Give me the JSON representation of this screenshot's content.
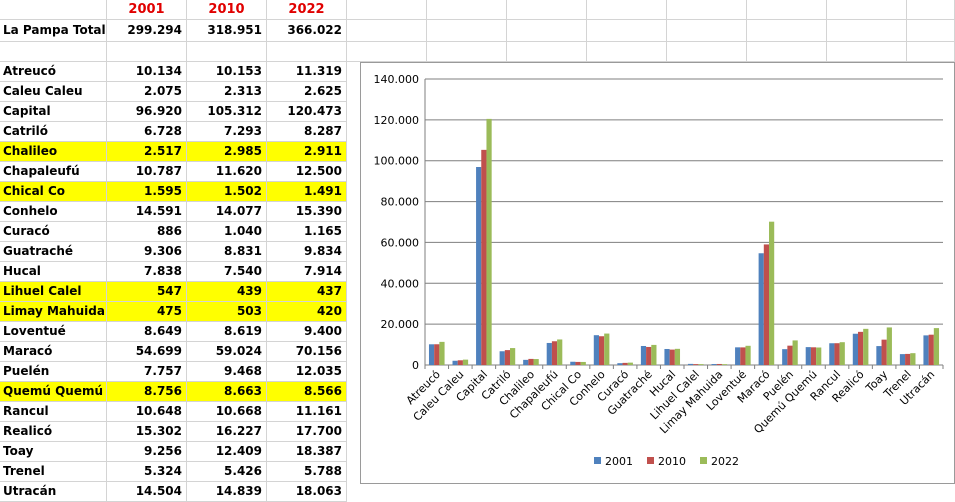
{
  "sheet": {
    "header_years": [
      "2001",
      "2010",
      "2022"
    ],
    "total_label": "La Pampa Total",
    "total_values": [
      "299.294",
      "318.951",
      "366.022"
    ],
    "rows": [
      {
        "name": "Atreucó",
        "v2001": "10.134",
        "v2010": "10.153",
        "v2022": "11.319",
        "highlight": false
      },
      {
        "name": "Caleu Caleu",
        "v2001": "2.075",
        "v2010": "2.313",
        "v2022": "2.625",
        "highlight": false
      },
      {
        "name": "Capital",
        "v2001": "96.920",
        "v2010": "105.312",
        "v2022": "120.473",
        "highlight": false
      },
      {
        "name": "Catriló",
        "v2001": "6.728",
        "v2010": "7.293",
        "v2022": "8.287",
        "highlight": false
      },
      {
        "name": "Chalileo",
        "v2001": "2.517",
        "v2010": "2.985",
        "v2022": "2.911",
        "highlight": true
      },
      {
        "name": "Chapaleufú",
        "v2001": "10.787",
        "v2010": "11.620",
        "v2022": "12.500",
        "highlight": false
      },
      {
        "name": "Chical Co",
        "v2001": "1.595",
        "v2010": "1.502",
        "v2022": "1.491",
        "highlight": true
      },
      {
        "name": "Conhelo",
        "v2001": "14.591",
        "v2010": "14.077",
        "v2022": "15.390",
        "highlight": false
      },
      {
        "name": "Curacó",
        "v2001": "886",
        "v2010": "1.040",
        "v2022": "1.165",
        "highlight": false
      },
      {
        "name": "Guatraché",
        "v2001": "9.306",
        "v2010": "8.831",
        "v2022": "9.834",
        "highlight": false
      },
      {
        "name": "Hucal",
        "v2001": "7.838",
        "v2010": "7.540",
        "v2022": "7.914",
        "highlight": false
      },
      {
        "name": "Lihuel Calel",
        "v2001": "547",
        "v2010": "439",
        "v2022": "437",
        "highlight": true
      },
      {
        "name": "Limay Mahuida",
        "v2001": "475",
        "v2010": "503",
        "v2022": "420",
        "highlight": true
      },
      {
        "name": "Loventué",
        "v2001": "8.649",
        "v2010": "8.619",
        "v2022": "9.400",
        "highlight": false
      },
      {
        "name": "Maracó",
        "v2001": "54.699",
        "v2010": "59.024",
        "v2022": "70.156",
        "highlight": false
      },
      {
        "name": "Puelén",
        "v2001": "7.757",
        "v2010": "9.468",
        "v2022": "12.035",
        "highlight": false
      },
      {
        "name": "Quemú Quemú",
        "v2001": "8.756",
        "v2010": "8.663",
        "v2022": "8.566",
        "highlight": true
      },
      {
        "name": "Rancul",
        "v2001": "10.648",
        "v2010": "10.668",
        "v2022": "11.161",
        "highlight": false
      },
      {
        "name": "Realicó",
        "v2001": "15.302",
        "v2010": "16.227",
        "v2022": "17.700",
        "highlight": false
      },
      {
        "name": "Toay",
        "v2001": "9.256",
        "v2010": "12.409",
        "v2022": "18.387",
        "highlight": false
      },
      {
        "name": "Trenel",
        "v2001": "5.324",
        "v2010": "5.426",
        "v2022": "5.788",
        "highlight": false
      },
      {
        "name": "Utracán",
        "v2001": "14.504",
        "v2010": "14.839",
        "v2022": "18.063",
        "highlight": false
      }
    ]
  },
  "colors": {
    "header_text": "#e00000",
    "highlight": "#ffff00",
    "series": [
      "#4f81bd",
      "#c0504d",
      "#9bbb59"
    ]
  },
  "chart_data": {
    "type": "bar",
    "title": "",
    "xlabel": "",
    "ylabel": "",
    "ylim": [
      0,
      140000
    ],
    "y_ticks": [
      0,
      20000,
      40000,
      60000,
      80000,
      100000,
      120000,
      140000
    ],
    "y_tick_labels": [
      "0",
      "20.000",
      "40.000",
      "60.000",
      "80.000",
      "100.000",
      "120.000",
      "140.000"
    ],
    "grid": "horizontal",
    "legend_position": "bottom",
    "categories": [
      "Atreucó",
      "Caleu Caleu",
      "Capital",
      "Catriló",
      "Chalileo",
      "Chapaleufú",
      "Chical Co",
      "Conhelo",
      "Curacó",
      "Guatraché",
      "Hucal",
      "Lihuel Calel",
      "Limay Mahuida",
      "Loventué",
      "Maracó",
      "Puelén",
      "Quemú Quemú",
      "Rancul",
      "Realicó",
      "Toay",
      "Trenel",
      "Utracán"
    ],
    "series": [
      {
        "name": "2001",
        "values": [
          10134,
          2075,
          96920,
          6728,
          2517,
          10787,
          1595,
          14591,
          886,
          9306,
          7838,
          547,
          475,
          8649,
          54699,
          7757,
          8756,
          10648,
          15302,
          9256,
          5324,
          14504
        ]
      },
      {
        "name": "2010",
        "values": [
          10153,
          2313,
          105312,
          7293,
          2985,
          11620,
          1502,
          14077,
          1040,
          8831,
          7540,
          439,
          503,
          8619,
          59024,
          9468,
          8663,
          10668,
          16227,
          12409,
          5426,
          14839
        ]
      },
      {
        "name": "2022",
        "values": [
          11319,
          2625,
          120473,
          8287,
          2911,
          12500,
          1491,
          15390,
          1165,
          9834,
          7914,
          437,
          420,
          9400,
          70156,
          12035,
          8566,
          11161,
          17700,
          18387,
          5788,
          18063
        ]
      }
    ]
  }
}
